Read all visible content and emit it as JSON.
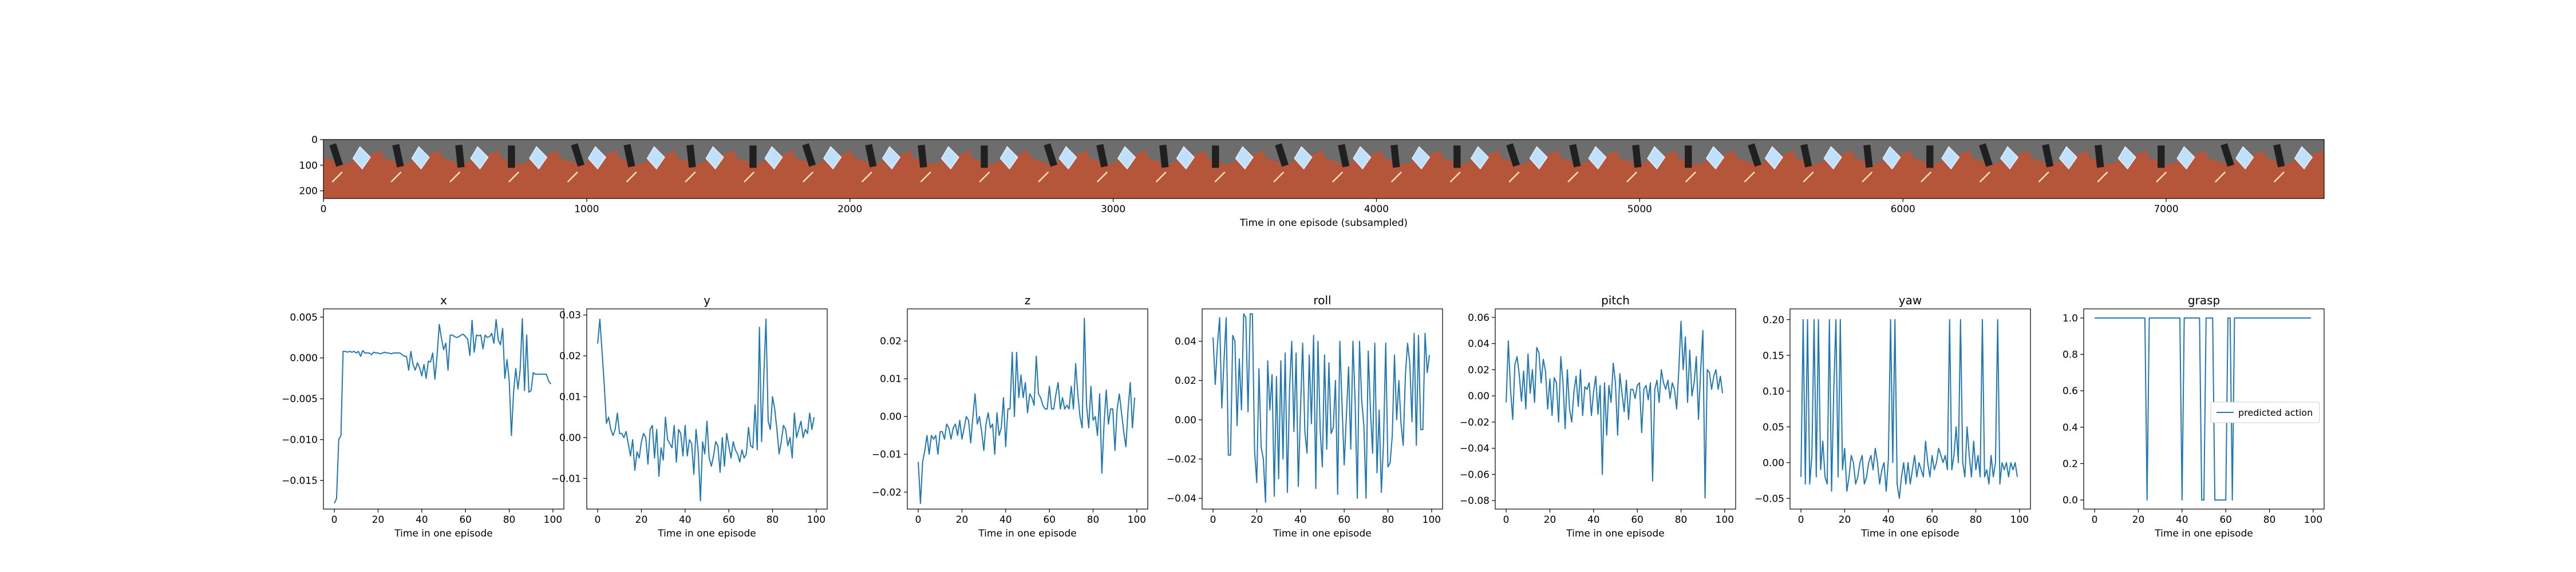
{
  "filmstrip": {
    "xlabel": "Time in one episode (subsampled)",
    "xticks": [
      0,
      1000,
      2000,
      3000,
      4000,
      5000,
      6000,
      7000
    ],
    "yticks": [
      0,
      100,
      200
    ],
    "xlim": [
      0,
      7600
    ],
    "ylim": [
      0,
      230
    ],
    "frame_count": 34
  },
  "colors": {
    "line": "#1f77b4",
    "background": "#ffffff",
    "axes": "#000000",
    "floor": "#b5563a",
    "wall": "#6d6d6d",
    "object": "#bfe0ff",
    "gripper": "#202020"
  },
  "chart_data": [
    {
      "type": "line",
      "title": "x",
      "xlabel": "Time in one episode",
      "ylabel": "",
      "xlim": [
        -5,
        105
      ],
      "ylim": [
        -0.0185,
        0.006
      ],
      "xticks": [
        0,
        20,
        40,
        60,
        80,
        100
      ],
      "yticks": [
        0.005,
        0.0,
        -0.005,
        -0.01,
        -0.015
      ],
      "ytick_labels": [
        "0.005",
        "0.000",
        "−0.005",
        "−0.010",
        "−0.015"
      ],
      "y": [
        -0.0178,
        -0.0172,
        -0.01,
        -0.0095,
        0.0008,
        0.0008,
        0.0007,
        0.0008,
        0.0007,
        0.0008,
        0.0006,
        0.0008,
        0.0002,
        0.0009,
        0.0006,
        0.0006,
        0.0006,
        0.0004,
        0.0007,
        0.0006,
        0.0006,
        0.0005,
        0.0006,
        0.0007,
        0.0006,
        0.0006,
        0.0005,
        0.0006,
        0.0006,
        0.0006,
        0.0006,
        0.0004,
        0.0002,
        0.0002,
        -0.0015,
        0.0008,
        -0.0008,
        -0.0015,
        -0.0006,
        -0.0012,
        -0.0022,
        -0.0008,
        -0.0025,
        -0.0004,
        -0.0005,
        0.0006,
        -0.0026,
        0.0003,
        0.0041,
        0.0024,
        0.001,
        0.0018,
        -0.0015,
        0.0028,
        0.0028,
        0.0026,
        0.0025,
        0.0026,
        0.0028,
        0.0029,
        0.0026,
        0.0023,
        0.0003,
        0.0046,
        0.0007,
        0.0028,
        0.0027,
        0.0028,
        0.0011,
        0.0028,
        0.0025,
        0.0026,
        0.003,
        0.0018,
        0.0047,
        0.0022,
        0.0016,
        0.0036,
        -0.0025,
        -0.0002,
        -0.0028,
        -0.0095,
        -0.0042,
        -0.0013,
        -0.0038,
        -0.0015,
        0.0048,
        -0.004,
        0.0028,
        -0.0042,
        -0.004,
        -0.0018,
        -0.002,
        -0.002,
        -0.002,
        -0.002,
        -0.002,
        -0.002,
        -0.0028,
        -0.0032
      ]
    },
    {
      "type": "line",
      "title": "y",
      "xlabel": "Time in one episode",
      "ylabel": "",
      "xlim": [
        -5,
        105
      ],
      "ylim": [
        -0.0175,
        0.0315
      ],
      "xticks": [
        0,
        20,
        40,
        60,
        80,
        100
      ],
      "yticks": [
        0.03,
        0.02,
        0.01,
        0.0,
        -0.01
      ],
      "ytick_labels": [
        "0.03",
        "0.02",
        "0.01",
        "0.00",
        "−0.01"
      ],
      "y": [
        0.023,
        0.029,
        0.021,
        0.013,
        0.0035,
        0.005,
        0.002,
        0.0005,
        0.002,
        0.006,
        0.001,
        0.001,
        0.0,
        0.0015,
        -0.0015,
        -0.0045,
        -0.0005,
        -0.008,
        -0.0035,
        -0.005,
        -0.001,
        0.001,
        0.0,
        -0.0065,
        0.002,
        0.003,
        -0.005,
        0.002,
        -0.0095,
        -0.0025,
        -0.0055,
        0.005,
        -0.0005,
        -0.0015,
        -0.0025,
        0.003,
        -0.006,
        0.002,
        0.001,
        -0.0045,
        0.003,
        -0.0045,
        -0.0005,
        -0.0015,
        -0.009,
        0.002,
        -0.0035,
        -0.0155,
        -0.001,
        -0.004,
        0.004,
        -0.005,
        -0.007,
        -0.0045,
        -0.001,
        -0.002,
        -0.0085,
        0.0,
        -0.007,
        0.001,
        -0.002,
        -0.005,
        -0.001,
        -0.003,
        -0.004,
        -0.006,
        -0.003,
        -0.005,
        -0.004,
        0.0025,
        -0.002,
        -0.0025,
        0.008,
        -0.003,
        0.027,
        -0.001,
        0.015,
        0.029,
        0.004,
        0.002,
        0.01,
        0.007,
        0.002,
        -0.004,
        -0.001,
        0.003,
        0.002,
        -0.002,
        0.0,
        -0.005,
        0.006,
        0.0,
        0.002,
        0.004,
        0.0,
        0.002,
        0.001,
        0.006,
        0.002,
        0.005
      ]
    },
    {
      "type": "line",
      "title": "z",
      "xlabel": "Time in one episode",
      "ylabel": "",
      "xlim": [
        -5,
        105
      ],
      "ylim": [
        -0.0245,
        0.0285
      ],
      "xticks": [
        0,
        20,
        40,
        60,
        80,
        100
      ],
      "yticks": [
        0.02,
        0.01,
        0.0,
        -0.01,
        -0.02
      ],
      "ytick_labels": [
        "0.02",
        "0.01",
        "0.00",
        "−0.01",
        "−0.02"
      ],
      "y": [
        -0.012,
        -0.023,
        -0.012,
        -0.009,
        -0.005,
        -0.01,
        -0.005,
        -0.006,
        -0.005,
        -0.01,
        -0.004,
        -0.004,
        -0.006,
        -0.002,
        -0.003,
        -0.006,
        -0.003,
        -0.002,
        -0.005,
        -0.001,
        -0.006,
        -0.003,
        0.0,
        -0.001,
        -0.007,
        0.0,
        0.006,
        -0.002,
        0.0,
        -0.004,
        -0.009,
        -0.002,
        0.001,
        -0.003,
        -0.002,
        -0.01,
        0.001,
        -0.005,
        -0.003,
        0.005,
        -0.008,
        0.002,
        0.002,
        0.017,
        0.0,
        0.017,
        0.005,
        0.011,
        0.005,
        0.009,
        0.001,
        0.006,
        0.005,
        0.003,
        0.016,
        0.006,
        0.005,
        0.003,
        0.002,
        0.002,
        0.008,
        0.002,
        0.002,
        0.006,
        0.009,
        0.002,
        0.005,
        0.002,
        0.003,
        0.002,
        0.008,
        0.002,
        0.014,
        0.006,
        0.0,
        -0.003,
        0.026,
        0.003,
        -0.003,
        0.008,
        -0.001,
        0.0,
        -0.005,
        0.006,
        -0.015,
        -0.002,
        0.007,
        -0.002,
        0.002,
        0.002,
        -0.009,
        0.002,
        0.006,
        0.001,
        -0.004,
        -0.008,
        0.002,
        0.009,
        -0.003,
        0.005
      ]
    },
    {
      "type": "line",
      "title": "roll",
      "xlabel": "Time in one episode",
      "ylabel": "",
      "xlim": [
        -5,
        105
      ],
      "ylim": [
        -0.0455,
        0.0565
      ],
      "xticks": [
        0,
        20,
        40,
        60,
        80,
        100
      ],
      "yticks": [
        0.04,
        0.02,
        0.0,
        -0.02,
        -0.04
      ],
      "ytick_labels": [
        "0.04",
        "0.02",
        "0.00",
        "−0.02",
        "−0.04"
      ],
      "y": [
        0.042,
        0.018,
        0.038,
        0.052,
        0.006,
        0.03,
        0.052,
        -0.018,
        -0.018,
        0.043,
        0.04,
        -0.003,
        0.031,
        0.005,
        0.054,
        0.052,
        0.004,
        0.054,
        0.054,
        -0.016,
        -0.032,
        0.026,
        -0.014,
        -0.02,
        -0.042,
        0.03,
        0.005,
        0.023,
        -0.039,
        0.022,
        -0.03,
        0.03,
        -0.02,
        0.034,
        -0.037,
        0.016,
        0.04,
        -0.006,
        0.034,
        -0.034,
        0.005,
        0.039,
        -0.006,
        -0.017,
        0.033,
        -0.002,
        0.043,
        -0.035,
        0.04,
        -0.005,
        -0.024,
        0.033,
        -0.015,
        0.029,
        -0.007,
        -0.004,
        0.02,
        -0.038,
        0.04,
        0.008,
        -0.023,
        0.002,
        0.027,
        -0.015,
        0.04,
        0.009,
        -0.04,
        0.04,
        0.01,
        -0.003,
        -0.04,
        0.035,
        0.005,
        -0.017,
        0.039,
        -0.027,
        0.005,
        -0.037,
        -0.011,
        0.039,
        -0.024,
        -0.022,
        -0.008,
        0.033,
        0.0,
        0.02,
        -0.002,
        -0.013,
        0.023,
        0.039,
        0.029,
        -0.001,
        0.044,
        -0.013,
        0.043,
        -0.005,
        -0.005,
        0.044,
        0.024,
        0.033
      ]
    },
    {
      "type": "line",
      "title": "pitch",
      "xlabel": "Time in one episode",
      "ylabel": "",
      "xlim": [
        -5,
        105
      ],
      "ylim": [
        -0.0865,
        0.0665
      ],
      "xticks": [
        0,
        20,
        40,
        60,
        80,
        100
      ],
      "yticks": [
        0.06,
        0.04,
        0.02,
        0.0,
        -0.02,
        -0.04,
        -0.06,
        -0.08
      ],
      "ytick_labels": [
        "0.06",
        "0.04",
        "0.02",
        "0.00",
        "−0.02",
        "−0.04",
        "−0.06",
        "−0.08"
      ],
      "y": [
        -0.005,
        0.042,
        0.005,
        -0.018,
        0.024,
        0.03,
        0.016,
        -0.004,
        0.019,
        -0.01,
        0.032,
        0.002,
        0.02,
        -0.005,
        0.037,
        0.033,
        0.01,
        0.028,
        0.019,
        -0.01,
        0.013,
        -0.015,
        0.014,
        0.01,
        -0.02,
        0.03,
        0.01,
        -0.025,
        0.02,
        -0.01,
        -0.02,
        0.003,
        0.015,
        -0.008,
        0.02,
        -0.015,
        0.007,
        0.005,
        0.01,
        -0.015,
        0.003,
        0.015,
        -0.014,
        0.008,
        -0.06,
        0.01,
        -0.03,
        0.008,
        -0.005,
        0.025,
        0.01,
        -0.03,
        0.017,
        0.002,
        -0.012,
        0.012,
        -0.018,
        0.005,
        0.005,
        -0.002,
        0.008,
        0.01,
        -0.028,
        0.005,
        0.008,
        -0.003,
        0.01,
        -0.065,
        0.005,
        0.012,
        -0.005,
        0.02,
        0.01,
        0.005,
        0.012,
        -0.002,
        0.01,
        0.005,
        -0.01,
        0.02,
        0.057,
        0.02,
        0.045,
        -0.005,
        0.035,
        0.0,
        0.01,
        0.03,
        -0.018,
        0.02,
        0.05,
        -0.078,
        0.02,
        0.018,
        0.005,
        0.015,
        0.02,
        0.005,
        0.015,
        0.002
      ]
    },
    {
      "type": "line",
      "title": "yaw",
      "xlabel": "Time in one episode",
      "ylabel": "",
      "xlim": [
        -5,
        105
      ],
      "ylim": [
        -0.065,
        0.215
      ],
      "xticks": [
        0,
        20,
        40,
        60,
        80,
        100
      ],
      "yticks": [
        0.2,
        0.15,
        0.1,
        0.05,
        0.0,
        -0.05
      ],
      "ytick_labels": [
        "0.20",
        "0.15",
        "0.10",
        "0.05",
        "0.00",
        "−0.05"
      ],
      "y": [
        -0.02,
        0.2,
        -0.03,
        0.2,
        -0.03,
        0.01,
        0.2,
        -0.02,
        0.2,
        -0.01,
        0.03,
        -0.02,
        -0.03,
        0.2,
        -0.04,
        0.1,
        0.2,
        -0.02,
        0.2,
        -0.01,
        0.02,
        -0.04,
        -0.02,
        0.01,
        0.0,
        -0.03,
        -0.02,
        0.0,
        0.01,
        -0.03,
        -0.02,
        0.0,
        0.01,
        -0.01,
        0.02,
        0.0,
        -0.03,
        -0.01,
        0.0,
        -0.04,
        0.005,
        0.2,
        0.0,
        0.2,
        -0.03,
        -0.05,
        -0.02,
        0.0,
        -0.03,
        0.0,
        -0.03,
        -0.01,
        0.01,
        -0.02,
        0.0,
        -0.01,
        -0.02,
        0.03,
        0.0,
        -0.02,
        0.01,
        -0.01,
        0.0,
        0.02,
        0.01,
        0.0,
        0.01,
        -0.01,
        0.2,
        -0.01,
        0.01,
        0.05,
        0.0,
        0.2,
        0.0,
        -0.02,
        0.05,
        0.01,
        -0.02,
        0.03,
        -0.01,
        0.01,
        -0.02,
        0.2,
        -0.02,
        -0.01,
        -0.03,
        0.01,
        -0.02,
        0.0,
        0.2,
        -0.03,
        0.0,
        -0.01,
        0.0,
        -0.02,
        0.0,
        -0.01,
        0.0,
        -0.02
      ]
    },
    {
      "type": "line",
      "title": "grasp",
      "xlabel": "Time in one episode",
      "ylabel": "",
      "xlim": [
        -5,
        105
      ],
      "ylim": [
        -0.05,
        1.05
      ],
      "xticks": [
        0,
        20,
        40,
        60,
        80,
        100
      ],
      "yticks": [
        1.0,
        0.8,
        0.6,
        0.4,
        0.2,
        0.0
      ],
      "ytick_labels": [
        "1.0",
        "0.8",
        "0.6",
        "0.4",
        "0.2",
        "0.0"
      ],
      "legend": {
        "label": "predicted action",
        "location": "center-right"
      },
      "y": [
        1,
        1,
        1,
        1,
        1,
        1,
        1,
        1,
        1,
        1,
        1,
        1,
        1,
        1,
        1,
        1,
        1,
        1,
        1,
        1,
        1,
        1,
        1,
        1,
        0,
        1,
        1,
        1,
        1,
        1,
        1,
        1,
        1,
        1,
        1,
        1,
        1,
        1,
        1,
        1,
        0,
        1,
        1,
        1,
        1,
        1,
        1,
        1,
        1,
        0,
        0,
        1,
        1,
        1,
        1,
        0,
        0,
        0,
        0,
        0,
        0,
        1,
        1,
        0,
        1,
        1,
        1,
        1,
        1,
        1,
        1,
        1,
        1,
        1,
        1,
        1,
        1,
        1,
        1,
        1,
        1,
        1,
        1,
        1,
        1,
        1,
        1,
        1,
        1,
        1,
        1,
        1,
        1,
        1,
        1,
        1,
        1,
        1,
        1,
        1
      ]
    }
  ]
}
